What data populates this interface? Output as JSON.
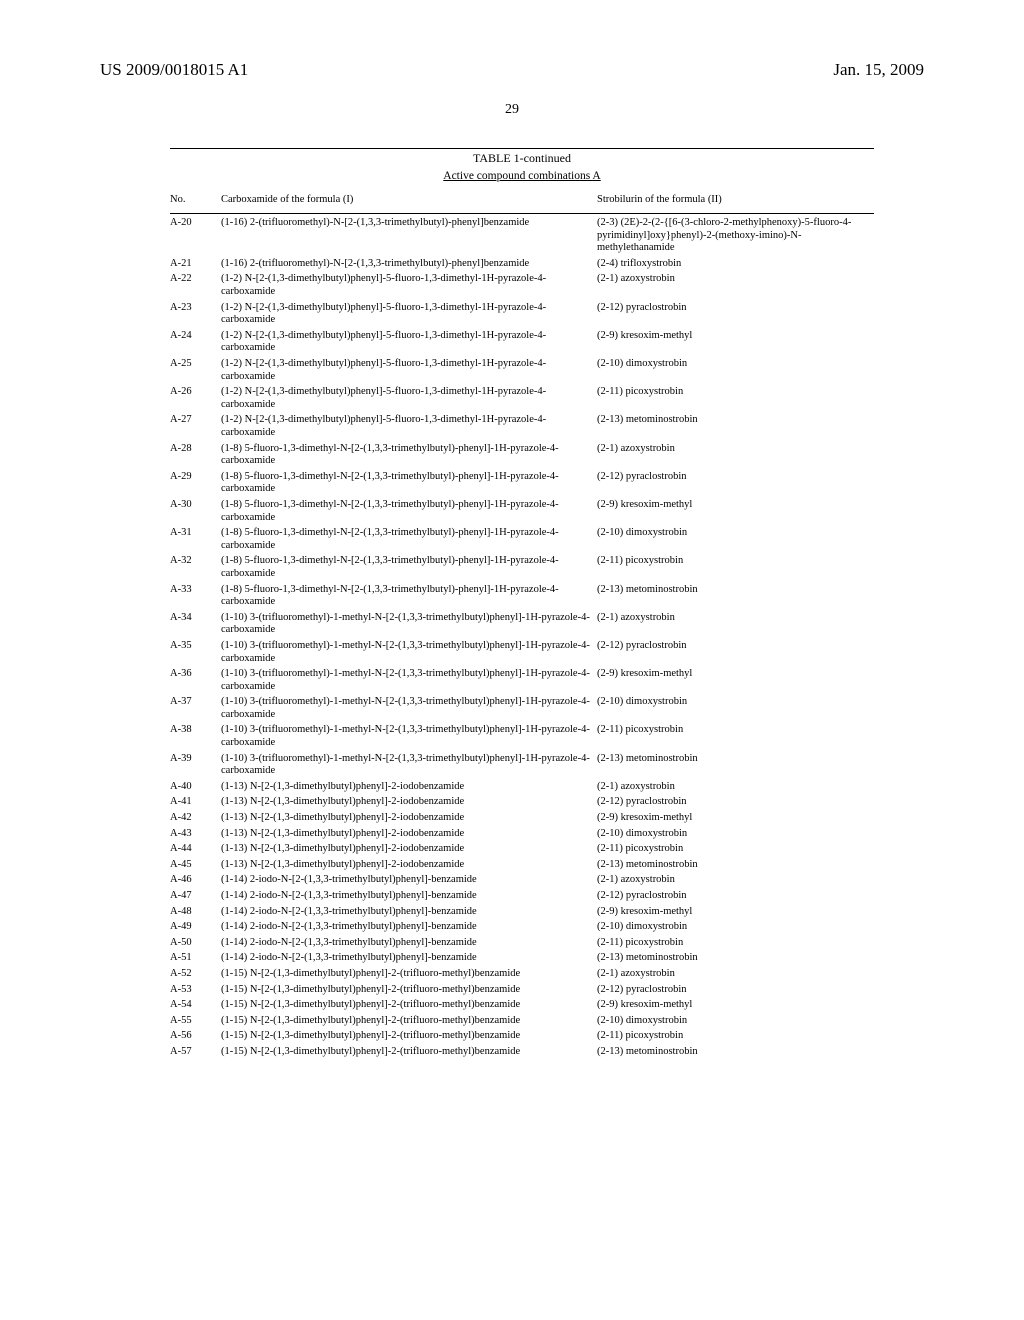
{
  "header": {
    "pub_number": "US 2009/0018015 A1",
    "pub_date": "Jan. 15, 2009",
    "page_number": "29"
  },
  "table": {
    "title": "TABLE 1-continued",
    "subtitle": "Active compound combinations A",
    "columns": {
      "no": "No.",
      "carboxamide": "Carboxamide of the formula (I)",
      "strobilurin": "Strobilurin of the formula (II)"
    },
    "rows": [
      {
        "no": "A-20",
        "carb": "(1-16) 2-(trifluoromethyl)-N-[2-(1,3,3-trimethylbutyl)-phenyl]benzamide",
        "strob": "(2-3) (2E)-2-(2-{[6-(3-chloro-2-methylphenoxy)-5-fluoro-4-pyrimidinyl]oxy}phenyl)-2-(methoxy-imino)-N-methylethanamide"
      },
      {
        "no": "A-21",
        "carb": "(1-16) 2-(trifluoromethyl)-N-[2-(1,3,3-trimethylbutyl)-phenyl]benzamide",
        "strob": "(2-4) trifloxystrobin"
      },
      {
        "no": "A-22",
        "carb": "(1-2) N-[2-(1,3-dimethylbutyl)phenyl]-5-fluoro-1,3-dimethyl-1H-pyrazole-4-carboxamide",
        "strob": "(2-1) azoxystrobin"
      },
      {
        "no": "A-23",
        "carb": "(1-2) N-[2-(1,3-dimethylbutyl)phenyl]-5-fluoro-1,3-dimethyl-1H-pyrazole-4-carboxamide",
        "strob": "(2-12) pyraclostrobin"
      },
      {
        "no": "A-24",
        "carb": "(1-2) N-[2-(1,3-dimethylbutyl)phenyl]-5-fluoro-1,3-dimethyl-1H-pyrazole-4-carboxamide",
        "strob": "(2-9) kresoxim-methyl"
      },
      {
        "no": "A-25",
        "carb": "(1-2) N-[2-(1,3-dimethylbutyl)phenyl]-5-fluoro-1,3-dimethyl-1H-pyrazole-4-carboxamide",
        "strob": "(2-10) dimoxystrobin"
      },
      {
        "no": "A-26",
        "carb": "(1-2) N-[2-(1,3-dimethylbutyl)phenyl]-5-fluoro-1,3-dimethyl-1H-pyrazole-4-carboxamide",
        "strob": "(2-11) picoxystrobin"
      },
      {
        "no": "A-27",
        "carb": "(1-2) N-[2-(1,3-dimethylbutyl)phenyl]-5-fluoro-1,3-dimethyl-1H-pyrazole-4-carboxamide",
        "strob": "(2-13) metominostrobin"
      },
      {
        "no": "A-28",
        "carb": "(1-8) 5-fluoro-1,3-dimethyl-N-[2-(1,3,3-trimethylbutyl)-phenyl]-1H-pyrazole-4-carboxamide",
        "strob": "(2-1) azoxystrobin"
      },
      {
        "no": "A-29",
        "carb": "(1-8) 5-fluoro-1,3-dimethyl-N-[2-(1,3,3-trimethylbutyl)-phenyl]-1H-pyrazole-4-carboxamide",
        "strob": "(2-12) pyraclostrobin"
      },
      {
        "no": "A-30",
        "carb": "(1-8) 5-fluoro-1,3-dimethyl-N-[2-(1,3,3-trimethylbutyl)-phenyl]-1H-pyrazole-4-carboxamide",
        "strob": "(2-9) kresoxim-methyl"
      },
      {
        "no": "A-31",
        "carb": "(1-8) 5-fluoro-1,3-dimethyl-N-[2-(1,3,3-trimethylbutyl)-phenyl]-1H-pyrazole-4-carboxamide",
        "strob": "(2-10) dimoxystrobin"
      },
      {
        "no": "A-32",
        "carb": "(1-8) 5-fluoro-1,3-dimethyl-N-[2-(1,3,3-trimethylbutyl)-phenyl]-1H-pyrazole-4-carboxamide",
        "strob": "(2-11) picoxystrobin"
      },
      {
        "no": "A-33",
        "carb": "(1-8) 5-fluoro-1,3-dimethyl-N-[2-(1,3,3-trimethylbutyl)-phenyl]-1H-pyrazole-4-carboxamide",
        "strob": "(2-13) metominostrobin"
      },
      {
        "no": "A-34",
        "carb": "(1-10) 3-(trifluoromethyl)-1-methyl-N-[2-(1,3,3-trimethylbutyl)phenyl]-1H-pyrazole-4-carboxamide",
        "strob": "(2-1) azoxystrobin"
      },
      {
        "no": "A-35",
        "carb": "(1-10) 3-(trifluoromethyl)-1-methyl-N-[2-(1,3,3-trimethylbutyl)phenyl]-1H-pyrazole-4-carboxamide",
        "strob": "(2-12) pyraclostrobin"
      },
      {
        "no": "A-36",
        "carb": "(1-10) 3-(trifluoromethyl)-1-methyl-N-[2-(1,3,3-trimethylbutyl)phenyl]-1H-pyrazole-4-carboxamide",
        "strob": "(2-9) kresoxim-methyl"
      },
      {
        "no": "A-37",
        "carb": "(1-10) 3-(trifluoromethyl)-1-methyl-N-[2-(1,3,3-trimethylbutyl)phenyl]-1H-pyrazole-4-carboxamide",
        "strob": "(2-10) dimoxystrobin"
      },
      {
        "no": "A-38",
        "carb": "(1-10) 3-(trifluoromethyl)-1-methyl-N-[2-(1,3,3-trimethylbutyl)phenyl]-1H-pyrazole-4-carboxamide",
        "strob": "(2-11) picoxystrobin"
      },
      {
        "no": "A-39",
        "carb": "(1-10) 3-(trifluoromethyl)-1-methyl-N-[2-(1,3,3-trimethylbutyl)phenyl]-1H-pyrazole-4-carboxamide",
        "strob": "(2-13) metominostrobin"
      },
      {
        "no": "A-40",
        "carb": "(1-13) N-[2-(1,3-dimethylbutyl)phenyl]-2-iodobenzamide",
        "strob": "(2-1) azoxystrobin"
      },
      {
        "no": "A-41",
        "carb": "(1-13) N-[2-(1,3-dimethylbutyl)phenyl]-2-iodobenzamide",
        "strob": "(2-12) pyraclostrobin"
      },
      {
        "no": "A-42",
        "carb": "(1-13) N-[2-(1,3-dimethylbutyl)phenyl]-2-iodobenzamide",
        "strob": "(2-9) kresoxim-methyl"
      },
      {
        "no": "A-43",
        "carb": "(1-13) N-[2-(1,3-dimethylbutyl)phenyl]-2-iodobenzamide",
        "strob": "(2-10) dimoxystrobin"
      },
      {
        "no": "A-44",
        "carb": "(1-13) N-[2-(1,3-dimethylbutyl)phenyl]-2-iodobenzamide",
        "strob": "(2-11) picoxystrobin"
      },
      {
        "no": "A-45",
        "carb": "(1-13) N-[2-(1,3-dimethylbutyl)phenyl]-2-iodobenzamide",
        "strob": "(2-13) metominostrobin"
      },
      {
        "no": "A-46",
        "carb": "(1-14) 2-iodo-N-[2-(1,3,3-trimethylbutyl)phenyl]-benzamide",
        "strob": "(2-1) azoxystrobin"
      },
      {
        "no": "A-47",
        "carb": "(1-14) 2-iodo-N-[2-(1,3,3-trimethylbutyl)phenyl]-benzamide",
        "strob": "(2-12) pyraclostrobin"
      },
      {
        "no": "A-48",
        "carb": "(1-14) 2-iodo-N-[2-(1,3,3-trimethylbutyl)phenyl]-benzamide",
        "strob": "(2-9) kresoxim-methyl"
      },
      {
        "no": "A-49",
        "carb": "(1-14) 2-iodo-N-[2-(1,3,3-trimethylbutyl)phenyl]-benzamide",
        "strob": "(2-10) dimoxystrobin"
      },
      {
        "no": "A-50",
        "carb": "(1-14) 2-iodo-N-[2-(1,3,3-trimethylbutyl)phenyl]-benzamide",
        "strob": "(2-11) picoxystrobin"
      },
      {
        "no": "A-51",
        "carb": "(1-14) 2-iodo-N-[2-(1,3,3-trimethylbutyl)phenyl]-benzamide",
        "strob": "(2-13) metominostrobin"
      },
      {
        "no": "A-52",
        "carb": "(1-15) N-[2-(1,3-dimethylbutyl)phenyl]-2-(trifluoro-methyl)benzamide",
        "strob": "(2-1) azoxystrobin"
      },
      {
        "no": "A-53",
        "carb": "(1-15) N-[2-(1,3-dimethylbutyl)phenyl]-2-(trifluoro-methyl)benzamide",
        "strob": "(2-12) pyraclostrobin"
      },
      {
        "no": "A-54",
        "carb": "(1-15) N-[2-(1,3-dimethylbutyl)phenyl]-2-(trifluoro-methyl)benzamide",
        "strob": "(2-9) kresoxim-methyl"
      },
      {
        "no": "A-55",
        "carb": "(1-15) N-[2-(1,3-dimethylbutyl)phenyl]-2-(trifluoro-methyl)benzamide",
        "strob": "(2-10) dimoxystrobin"
      },
      {
        "no": "A-56",
        "carb": "(1-15) N-[2-(1,3-dimethylbutyl)phenyl]-2-(trifluoro-methyl)benzamide",
        "strob": "(2-11) picoxystrobin"
      },
      {
        "no": "A-57",
        "carb": "(1-15) N-[2-(1,3-dimethylbutyl)phenyl]-2-(trifluoro-methyl)benzamide",
        "strob": "(2-13) metominostrobin"
      }
    ]
  }
}
